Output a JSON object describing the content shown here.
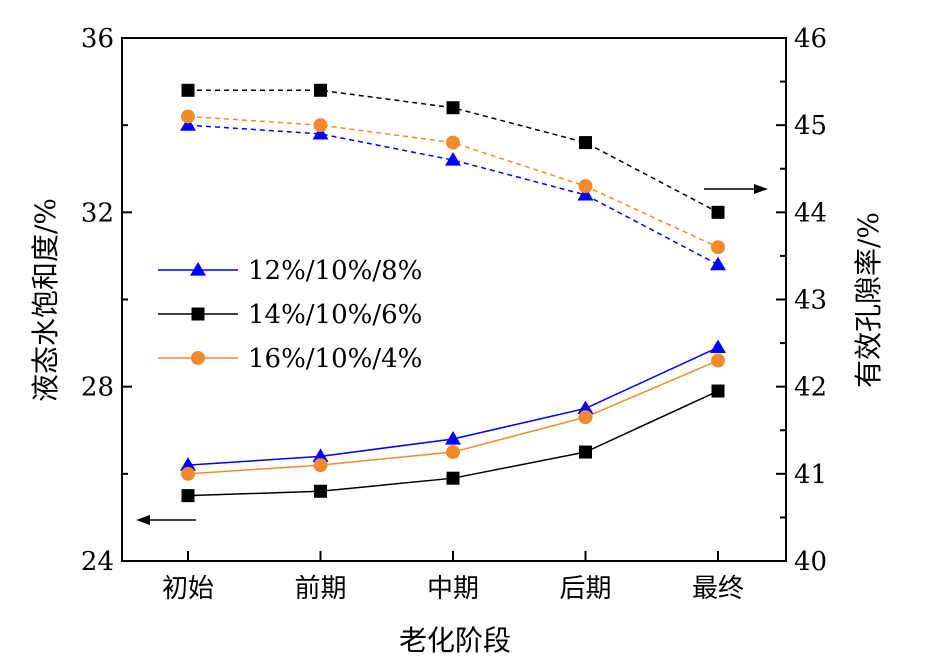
{
  "chart_data": {
    "type": "line",
    "categories": [
      "初始",
      "前期",
      "中期",
      "后期",
      "最终"
    ],
    "xlabel": "老化阶段",
    "ylabel_left": "液态水饱和度/%",
    "ylabel_right": "有效孔隙率/%",
    "ylim_left": [
      24,
      36
    ],
    "ylim_right": [
      40,
      46
    ],
    "yticks_left": [
      "24",
      "28",
      "32",
      "36"
    ],
    "yticks_right": [
      "40",
      "41",
      "42",
      "43",
      "44",
      "45",
      "46"
    ],
    "grid": false,
    "legend_position": "left-middle",
    "series": [
      {
        "name": "12%/10%/8%",
        "color": "#0000ff",
        "marker": "triangle",
        "saturation": [
          26.2,
          26.4,
          26.8,
          27.5,
          28.9
        ],
        "porosity": [
          45.0,
          44.9,
          44.6,
          44.2,
          43.4
        ]
      },
      {
        "name": "14%/10%/6%",
        "color": "#000000",
        "marker": "square",
        "saturation": [
          25.5,
          25.6,
          25.9,
          26.5,
          27.9
        ],
        "porosity": [
          45.4,
          45.4,
          45.2,
          44.8,
          44.0
        ]
      },
      {
        "name": "16%/10%/4%",
        "color": "#f08a2c",
        "marker": "circle",
        "saturation": [
          26.0,
          26.2,
          26.5,
          27.3,
          28.6
        ],
        "porosity": [
          45.1,
          45.0,
          44.8,
          44.3,
          43.6
        ]
      }
    ]
  }
}
